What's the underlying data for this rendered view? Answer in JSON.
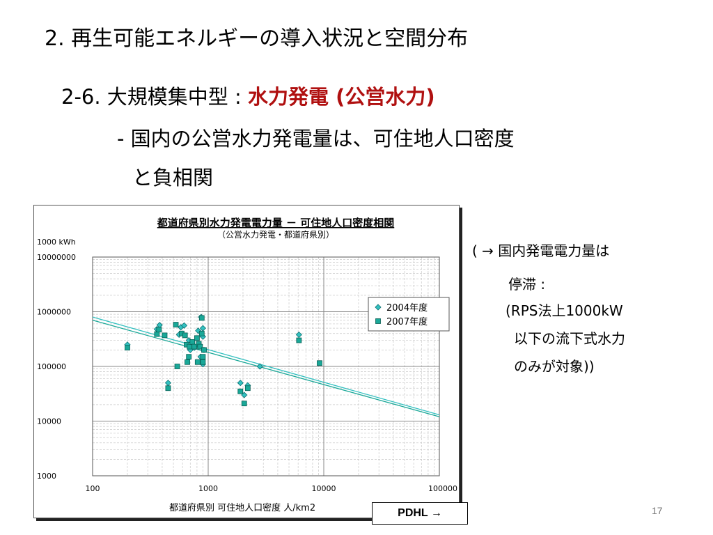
{
  "slide": {
    "title": "2. 再生可能エネルギーの導入状況と空間分布",
    "subtitle_prefix": "2-6. 大規模集中型 : ",
    "subtitle_highlight": "水力発電 (公営水力)",
    "bullet_line1": "- 国内の公営水力発電量は、可住地人口密度",
    "bullet_line2": "と負相関",
    "note_lines": [
      "( → 国内発電電力量は",
      "停滞 :",
      "(RPS法上1000kW",
      "以下の流下式水力",
      "のみが対象))"
    ],
    "button_label": "PDHL →",
    "page_number": "17",
    "accent_color": "#b01010"
  },
  "chart_data": {
    "type": "scatter",
    "title": "都道府県別水力発電電力量 － 可住地人口密度相関",
    "subtitle": "（公営水力発電・都道府県別）",
    "xlabel": "都道府県別 可住地人口密度 人/km2",
    "ylabel": "1000 kWh",
    "x_scale": "log",
    "y_scale": "log",
    "xlim": [
      100,
      100000
    ],
    "ylim": [
      1000,
      10000000
    ],
    "x_ticks": [
      "100",
      "1000",
      "10000",
      "100000"
    ],
    "y_ticks": [
      "10000000",
      "1000000",
      "100000",
      "10000",
      "1000"
    ],
    "grid": true,
    "legend_position": "right",
    "series": [
      {
        "name": "2004年度",
        "marker": "diamond",
        "color": "#33c0c0",
        "points": [
          [
            200,
            250000
          ],
          [
            380,
            570000
          ],
          [
            360,
            480000
          ],
          [
            450,
            50000
          ],
          [
            580,
            520000
          ],
          [
            620,
            560000
          ],
          [
            560,
            380000
          ],
          [
            680,
            300000
          ],
          [
            700,
            200000
          ],
          [
            760,
            220000
          ],
          [
            820,
            450000
          ],
          [
            870,
            800000
          ],
          [
            900,
            500000
          ],
          [
            900,
            350000
          ],
          [
            920,
            200000
          ],
          [
            860,
            150000
          ],
          [
            900,
            110000
          ],
          [
            1900,
            50000
          ],
          [
            2050,
            30000
          ],
          [
            2200,
            45000
          ],
          [
            2800,
            100000
          ],
          [
            6100,
            380000
          ]
        ]
      },
      {
        "name": "2007年度",
        "marker": "square",
        "color": "#1aa898",
        "points": [
          [
            200,
            220000
          ],
          [
            360,
            390000
          ],
          [
            375,
            470000
          ],
          [
            420,
            370000
          ],
          [
            450,
            40000
          ],
          [
            525,
            580000
          ],
          [
            540,
            100000
          ],
          [
            590,
            400000
          ],
          [
            630,
            370000
          ],
          [
            650,
            250000
          ],
          [
            660,
            120000
          ],
          [
            680,
            150000
          ],
          [
            690,
            230000
          ],
          [
            730,
            280000
          ],
          [
            760,
            230000
          ],
          [
            800,
            330000
          ],
          [
            810,
            120000
          ],
          [
            830,
            260000
          ],
          [
            850,
            230000
          ],
          [
            880,
            770000
          ],
          [
            880,
            400000
          ],
          [
            900,
            150000
          ],
          [
            920,
            200000
          ],
          [
            900,
            120000
          ],
          [
            1900,
            35000
          ],
          [
            2050,
            21000
          ],
          [
            2200,
            40000
          ],
          [
            6100,
            300000
          ],
          [
            9200,
            115000
          ]
        ]
      }
    ],
    "trendlines": [
      {
        "series": "2004年度",
        "color": "#33c0c0",
        "from": [
          100,
          800000
        ],
        "to": [
          100000,
          13000
        ]
      },
      {
        "series": "2007年度",
        "color": "#1aa898",
        "from": [
          100,
          700000
        ],
        "to": [
          100000,
          12000
        ]
      }
    ]
  }
}
